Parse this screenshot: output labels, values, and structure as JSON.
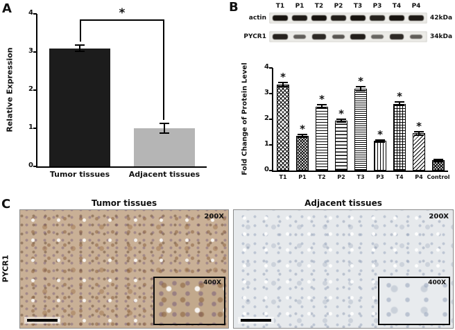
{
  "labels": {
    "a": "A",
    "b": "B",
    "c": "C"
  },
  "chart_data": [
    {
      "type": "bar",
      "panel": "A",
      "categories": [
        "Tumor tissues",
        "Adjacent tissues"
      ],
      "values": [
        3.1,
        1.0
      ],
      "errors": [
        0.08,
        0.12
      ],
      "ylabel": "Relative Expression",
      "ylim": [
        0,
        4
      ],
      "yticks": [
        0,
        1,
        2,
        3,
        4
      ],
      "bar_colors": [
        "#1c1c1c",
        "#b5b5b5"
      ],
      "significance": "*",
      "grid": false,
      "legend": "none"
    },
    {
      "type": "bar",
      "panel": "B",
      "categories": [
        "T1",
        "P1",
        "T2",
        "P2",
        "T3",
        "P3",
        "T4",
        "P4",
        "Control"
      ],
      "values": [
        3.35,
        1.35,
        2.5,
        1.95,
        3.2,
        1.15,
        2.6,
        1.45,
        0.4
      ],
      "errors": [
        0.07,
        0.06,
        0.07,
        0.06,
        0.08,
        0.05,
        0.07,
        0.06,
        0.04
      ],
      "sig": [
        "*",
        "*",
        "*",
        "*",
        "*",
        "*",
        "*",
        "*",
        ""
      ],
      "ylabel": "Fold Change of Protein Level",
      "ylim": [
        0,
        4
      ],
      "yticks": [
        0,
        1,
        2,
        3,
        4
      ],
      "grid": false,
      "legend": "none"
    }
  ],
  "blot": {
    "lanes": [
      "T1",
      "P1",
      "T2",
      "P2",
      "T3",
      "P3",
      "T4",
      "P4"
    ],
    "rows": [
      {
        "label": "actin",
        "kda": "42kDa",
        "intensities": [
          1,
          0.95,
          1,
          0.92,
          1,
          0.9,
          1,
          0.95
        ]
      },
      {
        "label": "PYCR1",
        "kda": "34kDa",
        "intensities": [
          0.9,
          0.5,
          0.85,
          0.55,
          0.92,
          0.45,
          0.85,
          0.5
        ]
      }
    ]
  },
  "panel_c": {
    "row_label": "PYCR1",
    "left_title": "Tumor tissues",
    "right_title": "Adjacent tissues",
    "mag_main": "200X",
    "mag_inset": "400X"
  }
}
